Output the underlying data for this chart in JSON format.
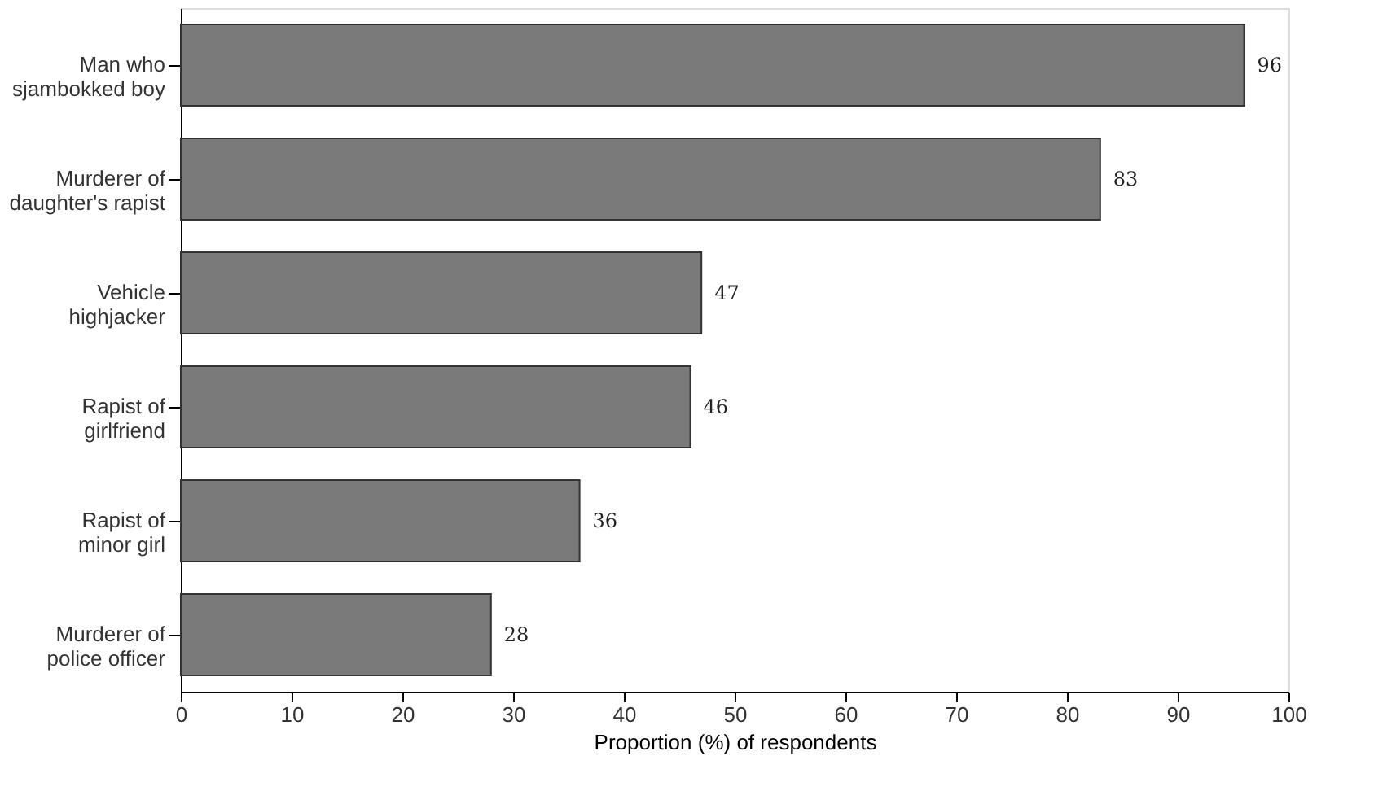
{
  "chart_data": {
    "type": "bar",
    "orientation": "horizontal",
    "xlabel": "Proportion (%) of respondents",
    "categories": [
      "Man who\nsjambokked boy",
      "Murderer of\ndaughter's rapist",
      "Vehicle\nhighjacker",
      "Rapist of\ngirlfriend",
      "Rapist of\nminor girl",
      "Murderer of\npolice officer"
    ],
    "values": [
      96,
      83,
      47,
      46,
      36,
      28
    ],
    "color": "#7a7a7a",
    "xlim": [
      0,
      100
    ],
    "xticks": [
      0,
      10,
      20,
      30,
      40,
      50,
      60,
      70,
      80,
      90,
      100
    ],
    "grid": false,
    "data_labels": true
  }
}
